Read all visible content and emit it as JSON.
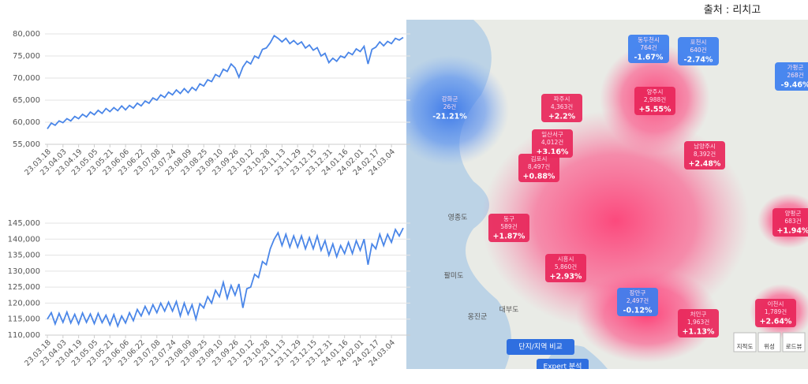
{
  "source": "출처 : 리치고",
  "chart_data": [
    {
      "type": "line",
      "color": "#4a86e8",
      "grid": true,
      "categories": [
        "23.03.18",
        null,
        null,
        null,
        "23.04.03",
        null,
        null,
        null,
        "23.04.19",
        null,
        null,
        null,
        "23.05.05",
        null,
        null,
        null,
        "23.05.21",
        null,
        null,
        null,
        "23.06.06",
        null,
        null,
        null,
        "23.06.22",
        null,
        null,
        null,
        "23.07.08",
        null,
        null,
        null,
        "23.07.24",
        null,
        null,
        null,
        "23.08.09",
        null,
        null,
        null,
        "23.08.25",
        null,
        null,
        null,
        "23.09.10",
        null,
        null,
        null,
        "23.09.26",
        null,
        null,
        null,
        "23.10.12",
        null,
        null,
        null,
        "23.10.28",
        null,
        null,
        null,
        "23.11.13",
        null,
        null,
        null,
        "23.11.29",
        null,
        null,
        null,
        "23.12.15",
        null,
        null,
        null,
        "23.12.31",
        null,
        null,
        null,
        "24.01.16",
        null,
        null,
        null,
        "24.02.01",
        null,
        null,
        null,
        "24.02.17",
        null,
        null,
        null,
        "24.03.04",
        null,
        null,
        null
      ],
      "values": [
        58500,
        59800,
        59300,
        60300,
        59900,
        60800,
        60300,
        61300,
        60800,
        61800,
        61200,
        62300,
        61700,
        62700,
        62000,
        63100,
        62400,
        63300,
        62600,
        63700,
        62800,
        63800,
        63200,
        64300,
        63700,
        64800,
        64300,
        65500,
        65000,
        66200,
        65600,
        66800,
        66200,
        67300,
        66500,
        67600,
        66700,
        67900,
        67200,
        68700,
        68200,
        69600,
        69200,
        70800,
        70300,
        72000,
        71500,
        73200,
        72300,
        70200,
        72500,
        73800,
        73200,
        75000,
        74500,
        76500,
        76800,
        78000,
        79600,
        79000,
        78200,
        79000,
        77800,
        78500,
        77600,
        78200,
        76800,
        77500,
        76300,
        76900,
        75000,
        75600,
        73500,
        74500,
        73800,
        75000,
        74600,
        75800,
        75300,
        76600,
        76000,
        77200,
        73200,
        76500,
        77000,
        78200,
        77300,
        78300,
        77800,
        79000,
        78600,
        79200
      ],
      "ylim": [
        55000,
        80000
      ],
      "yticks": [
        {
          "value": 55000,
          "label": "55,000"
        },
        {
          "value": 60000,
          "label": "60,000"
        },
        {
          "value": 65000,
          "label": "65,000"
        },
        {
          "value": 70000,
          "label": "70,000"
        },
        {
          "value": 75000,
          "label": "75,000"
        },
        {
          "value": 80000,
          "label": "80,000"
        }
      ]
    },
    {
      "type": "line",
      "color": "#4a86e8",
      "grid": true,
      "categories": [
        "23.03.18",
        null,
        null,
        null,
        "23.04.03",
        null,
        null,
        null,
        "23.04.19",
        null,
        null,
        null,
        "23.05.05",
        null,
        null,
        null,
        "23.05.21",
        null,
        null,
        null,
        "23.06.06",
        null,
        null,
        null,
        "23.06.22",
        null,
        null,
        null,
        "23.07.08",
        null,
        null,
        null,
        "23.07.24",
        null,
        null,
        null,
        "23.08.09",
        null,
        null,
        null,
        "23.08.25",
        null,
        null,
        null,
        "23.09.10",
        null,
        null,
        null,
        "23.09.26",
        null,
        null,
        null,
        "23.10.12",
        null,
        null,
        null,
        "23.10.28",
        null,
        null,
        null,
        "23.11.13",
        null,
        null,
        null,
        "23.11.29",
        null,
        null,
        null,
        "23.12.15",
        null,
        null,
        null,
        "23.12.31",
        null,
        null,
        null,
        "24.01.16",
        null,
        null,
        null,
        "24.02.01",
        null,
        null,
        null,
        "24.02.17",
        null,
        null,
        null,
        "24.03.04",
        null,
        null,
        null
      ],
      "values": [
        115000,
        117000,
        113500,
        116800,
        114000,
        117200,
        113800,
        116500,
        113500,
        116900,
        114000,
        116600,
        113600,
        116800,
        113900,
        116200,
        113200,
        116400,
        112800,
        116000,
        113800,
        117000,
        114500,
        118000,
        116000,
        119000,
        116500,
        119500,
        117000,
        120000,
        117500,
        120300,
        117500,
        120500,
        116000,
        120000,
        116500,
        119500,
        115000,
        119800,
        118500,
        122000,
        120000,
        124000,
        122000,
        126500,
        121500,
        125500,
        122500,
        126000,
        118500,
        124500,
        125000,
        129000,
        128000,
        133000,
        132000,
        137000,
        140000,
        142000,
        138000,
        141500,
        137500,
        141000,
        137500,
        141000,
        137000,
        140500,
        137000,
        141000,
        136500,
        139500,
        135000,
        138500,
        134500,
        138000,
        135500,
        139000,
        135500,
        139500,
        136500,
        140000,
        132000,
        138500,
        137000,
        141500,
        138000,
        141500,
        139000,
        143000,
        141000,
        143500
      ],
      "ylim": [
        110000,
        145000
      ],
      "yticks": [
        {
          "value": 110000,
          "label": "110,000"
        },
        {
          "value": 115000,
          "label": "115,000"
        },
        {
          "value": 120000,
          "label": "120,000"
        },
        {
          "value": 125000,
          "label": "125,000"
        },
        {
          "value": 130000,
          "label": "130,000"
        },
        {
          "value": 135000,
          "label": "135,000"
        },
        {
          "value": 140000,
          "label": "140,000"
        },
        {
          "value": 145000,
          "label": "145,000"
        }
      ]
    }
  ],
  "map": {
    "places": [
      "영종도",
      "옹진군",
      "대부도",
      "팔미도"
    ],
    "regions": [
      {
        "name": "강화군",
        "count": "26건",
        "change": "-21.21%",
        "kind": "down"
      },
      {
        "name": "동두천시",
        "count": "764건",
        "change": "-1.67%",
        "kind": "down"
      },
      {
        "name": "포천시",
        "count": "640건",
        "change": "-2.74%",
        "kind": "down"
      },
      {
        "name": "가평군",
        "count": "268건",
        "change": "-9.46%",
        "kind": "down"
      },
      {
        "name": "파주시",
        "count": "4,363건",
        "change": "+2.2%",
        "kind": "up"
      },
      {
        "name": "양주시",
        "count": "2,988건",
        "change": "+5.55%",
        "kind": "up"
      },
      {
        "name": "일산서구",
        "count": "4,012건",
        "change": "+3.16%",
        "kind": "up"
      },
      {
        "name": "김포시",
        "count": "8,497건",
        "change": "+0.88%",
        "kind": "up"
      },
      {
        "name": "남양주시",
        "count": "8,392건",
        "change": "+2.48%",
        "kind": "up"
      },
      {
        "name": "동구",
        "count": "589건",
        "change": "+1.87%",
        "kind": "up"
      },
      {
        "name": "시흥시",
        "count": "5,860건",
        "change": "+2.93%",
        "kind": "up"
      },
      {
        "name": "장안구",
        "count": "2,497건",
        "change": "-0.12%",
        "kind": "down"
      },
      {
        "name": "처인구",
        "count": "1,963건",
        "change": "+1.13%",
        "kind": "up"
      },
      {
        "name": "이천시",
        "count": "1,789건",
        "change": "+2.64%",
        "kind": "up"
      },
      {
        "name": "양평군",
        "count": "683건",
        "change": "+1.94%",
        "kind": "up"
      }
    ],
    "buttons": [
      "단지/지역 비교",
      "Expert 분석"
    ],
    "layers": [
      "지적도",
      "위성",
      "로드뷰"
    ]
  }
}
